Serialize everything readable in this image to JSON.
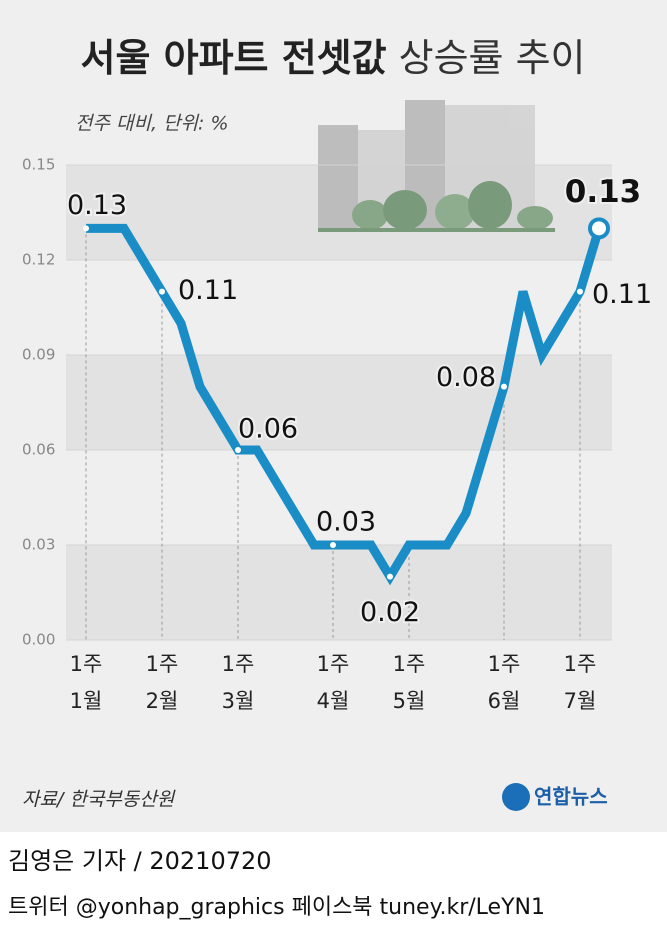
{
  "chart_data": {
    "type": "line",
    "title": {
      "bold": "서울 아파트 전셋값",
      "light": "상승률 추이"
    },
    "subtitle": "전주 대비, 단위: %",
    "categories": [
      [
        "1주",
        "1월"
      ],
      null,
      null,
      null,
      [
        "1주",
        "2월"
      ],
      null,
      null,
      null,
      [
        "1주",
        "3월"
      ],
      null,
      null,
      null,
      null,
      [
        "1주",
        "4월"
      ],
      null,
      null,
      null,
      [
        "1주",
        "5월"
      ],
      null,
      null,
      null,
      null,
      [
        "1주",
        "6월"
      ],
      null,
      null,
      null,
      [
        "1주",
        "7월"
      ],
      null
    ],
    "series": [
      {
        "name": "상승률",
        "color": "#1a8dc6",
        "values": [
          0.13,
          0.13,
          0.13,
          0.12,
          0.11,
          0.1,
          0.08,
          0.07,
          0.06,
          0.06,
          0.05,
          0.04,
          0.03,
          0.03,
          0.03,
          0.03,
          0.02,
          0.03,
          0.03,
          0.03,
          0.04,
          0.06,
          0.08,
          0.11,
          0.09,
          0.1,
          0.11,
          0.13
        ],
        "value_labels": [
          "0.13",
          null,
          null,
          null,
          "0.11",
          null,
          null,
          null,
          "0.06",
          null,
          null,
          null,
          null,
          "0.03",
          null,
          null,
          "0.02",
          null,
          null,
          null,
          null,
          null,
          "0.08",
          null,
          null,
          null,
          "0.11",
          "0.13"
        ]
      }
    ],
    "ylim": [
      0,
      0.15
    ],
    "yticks": [
      {
        "value": 0,
        "label": "0.00"
      },
      0.03,
      0.06,
      0.09,
      0.12,
      0.15
    ],
    "source": "자료/ 한국부동산원",
    "logo": "연합뉴스",
    "byline": "김영은 기자 / 20210720",
    "social": "트위터 @yonhap_graphics  페이스북 tuney.kr/LeYN1"
  }
}
